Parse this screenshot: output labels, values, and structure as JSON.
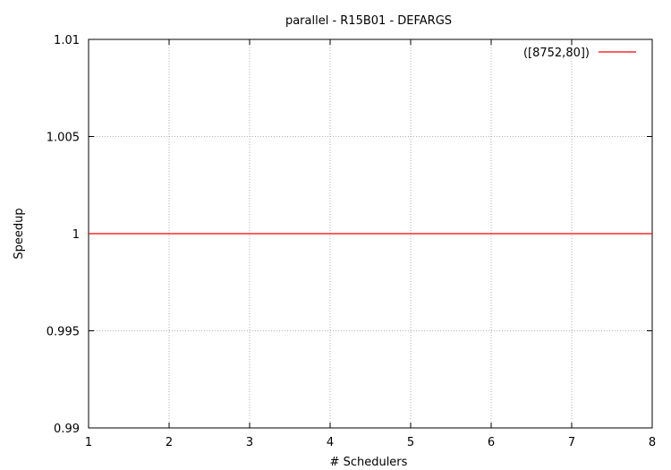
{
  "chart_data": {
    "type": "line",
    "title": "parallel - R15B01 - DEFARGS",
    "xlabel": "# Schedulers",
    "ylabel": "Speedup",
    "xlim": [
      1,
      8
    ],
    "ylim": [
      0.99,
      1.01
    ],
    "x_ticks": [
      1,
      2,
      3,
      4,
      5,
      6,
      7,
      8
    ],
    "y_ticks": [
      0.99,
      0.995,
      1,
      1.005,
      1.01
    ],
    "y_tick_labels": [
      "0.99",
      "0.995",
      "1",
      "1.005",
      "1.01"
    ],
    "grid": true,
    "legend_position": "top-right",
    "series": [
      {
        "name": "([8752,80])",
        "color": "#ff0000",
        "x": [
          1,
          2,
          3,
          4,
          5,
          6,
          7,
          8
        ],
        "y": [
          1,
          1,
          1,
          1,
          1,
          1,
          1,
          1
        ]
      }
    ]
  }
}
